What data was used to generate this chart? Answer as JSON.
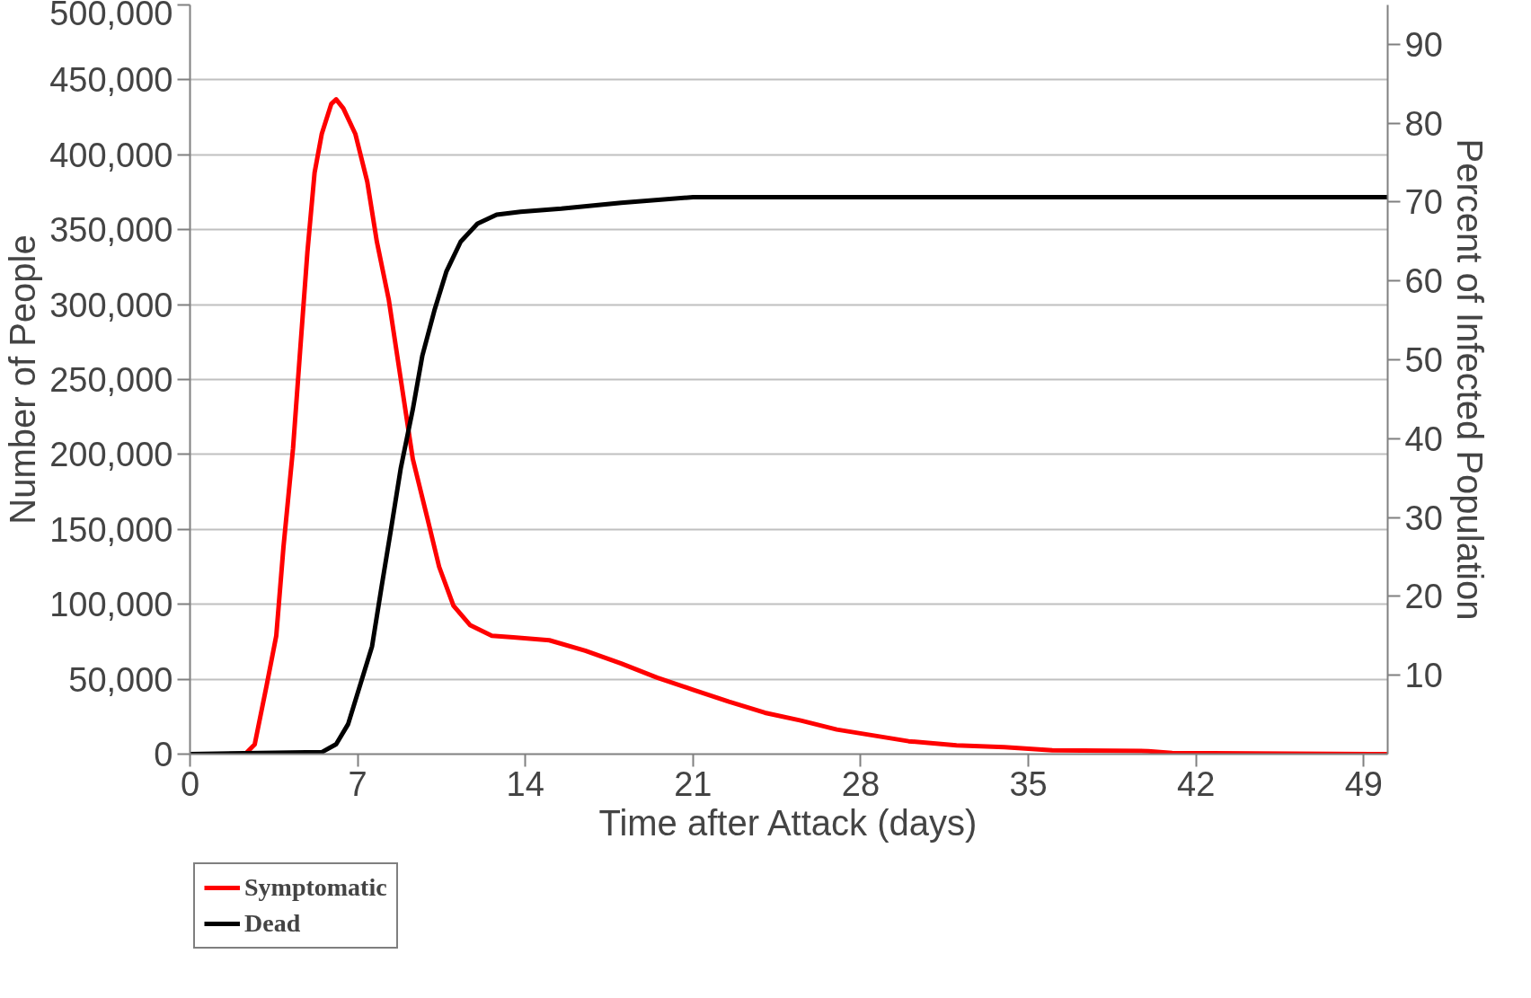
{
  "chart_data": {
    "type": "line",
    "xlabel": "Time after Attack (days)",
    "ylabel": "Number of People",
    "y2label": "Percent of Infected Population",
    "xlim": [
      0,
      50
    ],
    "xticks": [
      0,
      7,
      14,
      21,
      28,
      35,
      42,
      49
    ],
    "ylim": [
      0,
      500000
    ],
    "yticks": [
      {
        "value": 0,
        "label": "0"
      },
      {
        "value": 50000,
        "label": "50,000"
      },
      {
        "value": 100000,
        "label": "100,000"
      },
      {
        "value": 150000,
        "label": "150,000"
      },
      {
        "value": 200000,
        "label": "200,000"
      },
      {
        "value": 250000,
        "label": "250,000"
      },
      {
        "value": 300000,
        "label": "300,000"
      },
      {
        "value": 350000,
        "label": "350,000"
      },
      {
        "value": 400000,
        "label": "400,000"
      },
      {
        "value": 450000,
        "label": "450,000"
      },
      {
        "value": 500000,
        "label": "500,000"
      }
    ],
    "y2lim": [
      0,
      95
    ],
    "y2ticks": [
      10,
      20,
      30,
      40,
      50,
      60,
      70,
      80,
      90
    ],
    "grid": "y",
    "legend": "bottom left",
    "marker": "none",
    "line_style": "solid",
    "series": [
      {
        "name": "Symptomatic",
        "color": "#ff0000",
        "x": [
          0,
          2.3,
          2.7,
          3.2,
          3.6,
          3.9,
          4.3,
          4.6,
          4.9,
          5.2,
          5.5,
          5.9,
          6.1,
          6.4,
          6.9,
          7.4,
          7.8,
          8.3,
          8.8,
          9.3,
          9.9,
          10.4,
          11.0,
          11.7,
          12.6,
          13.5,
          15.0,
          16.5,
          18.0,
          19.5,
          21,
          22.5,
          24,
          25.5,
          27,
          28.5,
          30,
          32,
          34,
          36,
          40,
          41,
          50
        ],
        "values": [
          0,
          0,
          6500,
          46000,
          79000,
          138000,
          204000,
          270000,
          335000,
          388000,
          414000,
          434000,
          437000,
          431000,
          414000,
          382000,
          342000,
          303000,
          250000,
          197000,
          158000,
          125000,
          99000,
          86000,
          79000,
          78000,
          76000,
          69000,
          60500,
          51000,
          43000,
          35000,
          27600,
          22400,
          16400,
          12500,
          8600,
          5900,
          4600,
          2600,
          2000,
          700,
          0
        ]
      },
      {
        "name": "Dead",
        "color": "#000000",
        "x": [
          0,
          5.5,
          6.1,
          6.6,
          7.1,
          7.6,
          8.0,
          8.4,
          8.8,
          9.3,
          9.7,
          10.2,
          10.7,
          11.3,
          12.0,
          12.8,
          13.8,
          15.5,
          18,
          21,
          50
        ],
        "values": [
          0,
          1300,
          6600,
          20000,
          46000,
          72000,
          112000,
          151000,
          191000,
          230000,
          266000,
          296000,
          322000,
          342000,
          354000,
          360000,
          362000,
          364000,
          368000,
          371700,
          371700
        ]
      }
    ]
  }
}
